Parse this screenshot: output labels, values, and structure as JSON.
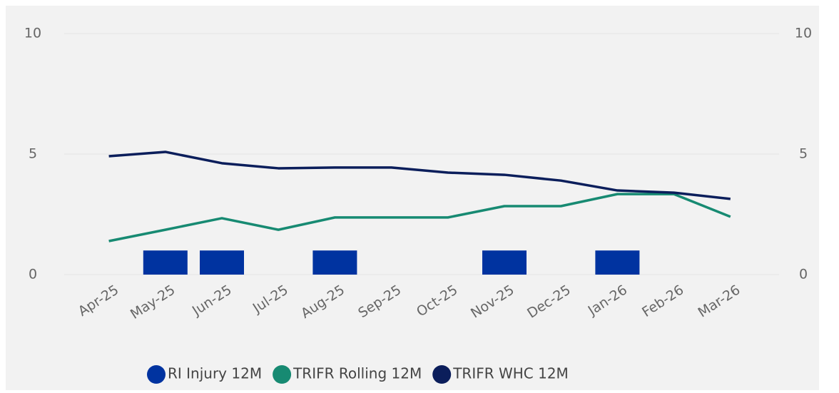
{
  "chart_data": {
    "type": "bar-line",
    "categories": [
      "Apr-25",
      "May-25",
      "Jun-25",
      "Jul-25",
      "Aug-25",
      "Sep-25",
      "Oct-25",
      "Nov-25",
      "Dec-25",
      "Jan-26",
      "Feb-26",
      "Mar-26"
    ],
    "series": [
      {
        "name": "RI Injury 12M",
        "type": "bar",
        "color": "#0033a0",
        "values": [
          0,
          1,
          1,
          0,
          1,
          0,
          0,
          1,
          0,
          1,
          0,
          0
        ]
      },
      {
        "name": "TRIFR Rolling 12M",
        "type": "line",
        "axis": "y2",
        "color": "#178a72",
        "values": [
          1.39,
          1.86,
          2.34,
          1.86,
          2.37,
          2.37,
          2.37,
          2.84,
          2.84,
          3.34,
          3.34,
          2.4
        ]
      },
      {
        "name": "TRIFR WHC 12M",
        "type": "line",
        "axis": "y2",
        "color": "#0b1e5b",
        "values": [
          4.91,
          5.09,
          4.62,
          4.41,
          4.44,
          4.44,
          4.23,
          4.14,
          3.9,
          3.49,
          3.4,
          3.14
        ]
      }
    ],
    "ylim": [
      0,
      10
    ],
    "yticks": [
      0,
      5,
      10
    ],
    "y2lim": [
      0,
      10
    ],
    "y2ticks": [
      0,
      5,
      10
    ],
    "grid": true,
    "legend": "bottom"
  }
}
